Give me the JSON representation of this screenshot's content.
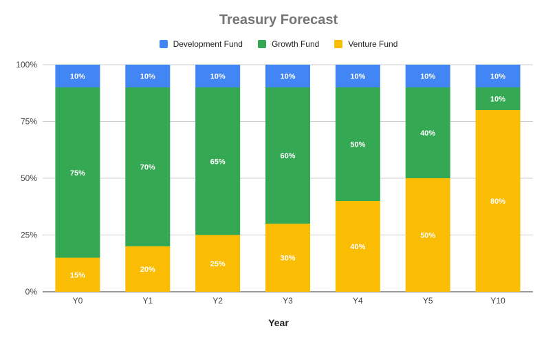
{
  "chart_data": {
    "type": "bar",
    "stacked": true,
    "title": "Treasury Forecast",
    "xlabel": "Year",
    "ylabel": "",
    "ylim": [
      0,
      100
    ],
    "yticks": [
      "0%",
      "25%",
      "50%",
      "75%",
      "100%"
    ],
    "grid": true,
    "legend_position": "top",
    "categories": [
      "Y0",
      "Y1",
      "Y2",
      "Y3",
      "Y4",
      "Y5",
      "Y10"
    ],
    "series": [
      {
        "name": "Venture Fund",
        "color": "#fbbc04",
        "values": [
          15,
          20,
          25,
          30,
          40,
          50,
          80
        ],
        "labels": [
          "15%",
          "20%",
          "25%",
          "30%",
          "40%",
          "50%",
          "80%"
        ]
      },
      {
        "name": "Growth Fund",
        "color": "#34a853",
        "values": [
          75,
          70,
          65,
          60,
          50,
          40,
          10
        ],
        "labels": [
          "75%",
          "70%",
          "65%",
          "60%",
          "50%",
          "40%",
          "10%"
        ]
      },
      {
        "name": "Development Fund",
        "color": "#4285f4",
        "values": [
          10,
          10,
          10,
          10,
          10,
          10,
          10
        ],
        "labels": [
          "10%",
          "10%",
          "10%",
          "10%",
          "10%",
          "10%",
          "10%"
        ]
      }
    ],
    "legend_order": [
      "Development Fund",
      "Growth Fund",
      "Venture Fund"
    ]
  }
}
